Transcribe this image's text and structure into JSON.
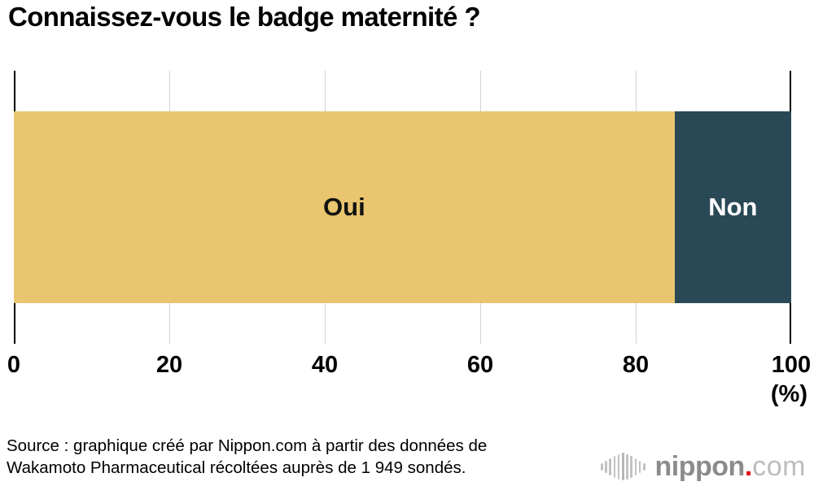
{
  "title": "Connaissez-vous le badge maternité ?",
  "chart_data": {
    "type": "bar",
    "orientation": "horizontal-stacked",
    "title": "Connaissez-vous le badge maternité ?",
    "categories": [
      "Oui",
      "Non"
    ],
    "series": [
      {
        "name": "Oui",
        "value": 85,
        "color": "#e8c56e",
        "text_color": "#111111"
      },
      {
        "name": "Non",
        "value": 15,
        "color": "#2a4956",
        "text_color": "#ffffff"
      }
    ],
    "x_ticks": [
      "0",
      "20",
      "40",
      "60",
      "80",
      "100"
    ],
    "x_unit_label": "(%)",
    "xlim": [
      0,
      100
    ],
    "grid": true,
    "gridline_color": "#d2d2d2",
    "axis_edge_color": "#000000"
  },
  "source": {
    "line1": "Source : graphique créé par Nippon.com à partir des données de",
    "line2": "Wakamoto Pharmaceutical récoltées auprès de 1 949 sondés."
  },
  "logo": {
    "brand_bold": "nippon",
    "brand_dot": ".",
    "brand_light": "com",
    "accent_color": "#e60012"
  }
}
